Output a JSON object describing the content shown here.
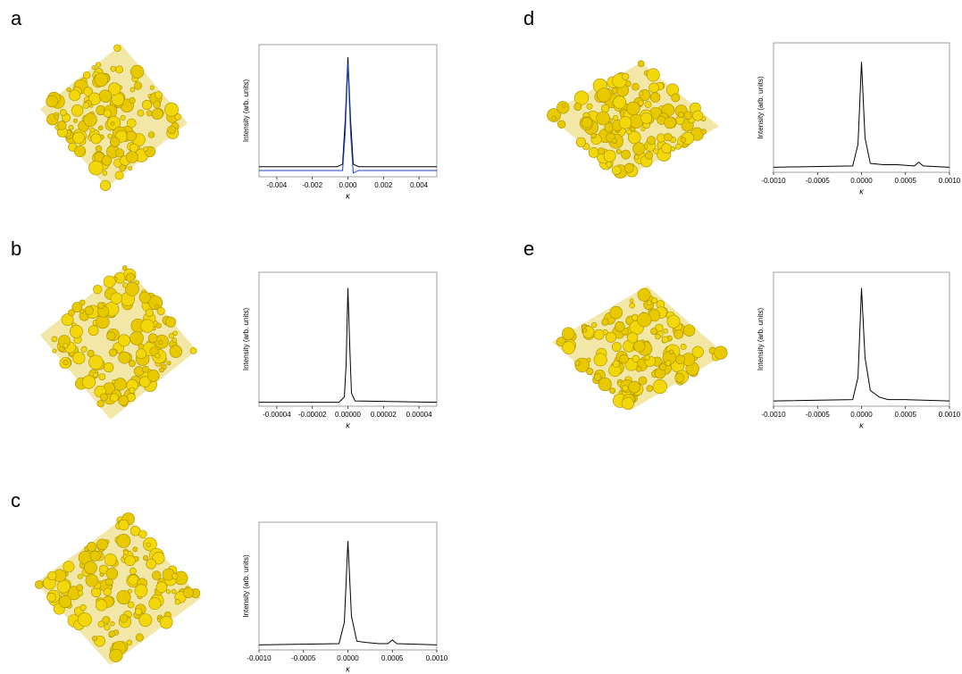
{
  "chart_data": [
    {
      "type": "line",
      "label": "a",
      "ylabel": "Intensity (arb. units)",
      "xlabel": "κ",
      "x": [
        -0.005,
        -0.0006,
        -0.0003,
        -0.00015,
        0,
        0.00015,
        0.0003,
        0.0006,
        0.005
      ],
      "series": [
        {
          "color": "#000000",
          "values": [
            0.03,
            0.03,
            0.05,
            0.4,
            0.9,
            0.4,
            0.05,
            0.03,
            0.03
          ]
        },
        {
          "color": "#1f3fbf",
          "values": [
            0.0,
            0.0,
            0.0,
            0.3,
            0.85,
            0.3,
            -0.02,
            0.0,
            0.0
          ]
        }
      ],
      "xlim": [
        -0.005,
        0.005
      ],
      "ylim": [
        -0.05,
        1.0
      ],
      "xticks": [
        -0.004,
        -0.002,
        {
          "value": 0,
          "label": "0.000"
        },
        0.002,
        0.004
      ]
    },
    {
      "type": "line",
      "label": "b",
      "ylabel": "Intensity (arb. units)",
      "xlabel": "κ",
      "x": [
        -5e-05,
        -5e-06,
        -2e-06,
        -1e-06,
        0,
        1e-06,
        2e-06,
        4e-06,
        5e-05
      ],
      "series": [
        {
          "color": "#000000",
          "values": [
            0.01,
            0.01,
            0.05,
            0.3,
            0.88,
            0.45,
            0.08,
            0.02,
            0.01
          ]
        }
      ],
      "xlim": [
        -5e-05,
        5e-05
      ],
      "ylim": [
        -0.02,
        1.0
      ],
      "xticks": [
        -4e-05,
        -2e-05,
        {
          "value": 0,
          "label": "0.00000"
        },
        2e-05,
        4e-05
      ]
    },
    {
      "type": "line",
      "label": "c",
      "ylabel": "Intensity (arb. units)",
      "xlabel": "κ",
      "x": [
        -0.001,
        -0.0001,
        -4e-05,
        0,
        4e-05,
        0.0001,
        0.0002,
        0.00035,
        0.00045,
        0.0005,
        0.00055,
        0.001
      ],
      "series": [
        {
          "color": "#000000",
          "values": [
            0.02,
            0.03,
            0.2,
            0.85,
            0.25,
            0.05,
            0.04,
            0.03,
            0.03,
            0.06,
            0.03,
            0.02
          ]
        }
      ],
      "xlim": [
        -0.001,
        0.001
      ],
      "ylim": [
        -0.02,
        1.0
      ],
      "xticks": [
        {
          "value": -0.001,
          "label": "-0.0010"
        },
        -0.0005,
        {
          "value": 0,
          "label": "0.0000"
        },
        0.0005,
        {
          "value": 0.001,
          "label": "0.0010"
        }
      ]
    },
    {
      "type": "line",
      "label": "d",
      "ylabel": "Intensity (arb. units)",
      "xlabel": "κ",
      "x": [
        -0.001,
        -0.0001,
        -4e-05,
        0,
        4e-05,
        0.0001,
        0.00025,
        0.0004,
        0.0006,
        0.00065,
        0.0007,
        0.001
      ],
      "series": [
        {
          "color": "#000000",
          "values": [
            0.02,
            0.03,
            0.2,
            0.85,
            0.25,
            0.05,
            0.04,
            0.04,
            0.03,
            0.06,
            0.03,
            0.02
          ]
        }
      ],
      "xlim": [
        -0.001,
        0.001
      ],
      "ylim": [
        -0.02,
        1.0
      ],
      "xticks": [
        {
          "value": -0.001,
          "label": "-0.0010"
        },
        -0.0005,
        {
          "value": 0,
          "label": "0.0000"
        },
        0.0005,
        {
          "value": 0.001,
          "label": "0.0010"
        }
      ]
    },
    {
      "type": "line",
      "label": "e",
      "ylabel": "Intensity (arb. units)",
      "xlabel": "κ",
      "x": [
        -0.001,
        -0.0001,
        -4e-05,
        0,
        4e-05,
        0.0001,
        0.0002,
        0.0003,
        0.0005,
        0.001
      ],
      "series": [
        {
          "color": "#000000",
          "values": [
            0.02,
            0.03,
            0.2,
            0.88,
            0.35,
            0.1,
            0.05,
            0.03,
            0.03,
            0.02
          ]
        }
      ],
      "xlim": [
        -0.001,
        0.001
      ],
      "ylim": [
        -0.02,
        1.0
      ],
      "xticks": [
        {
          "value": -0.001,
          "label": "-0.0010"
        },
        -0.0005,
        {
          "value": 0,
          "label": "0.0000"
        },
        0.0005,
        {
          "value": 0.001,
          "label": "0.0010"
        }
      ]
    }
  ]
}
